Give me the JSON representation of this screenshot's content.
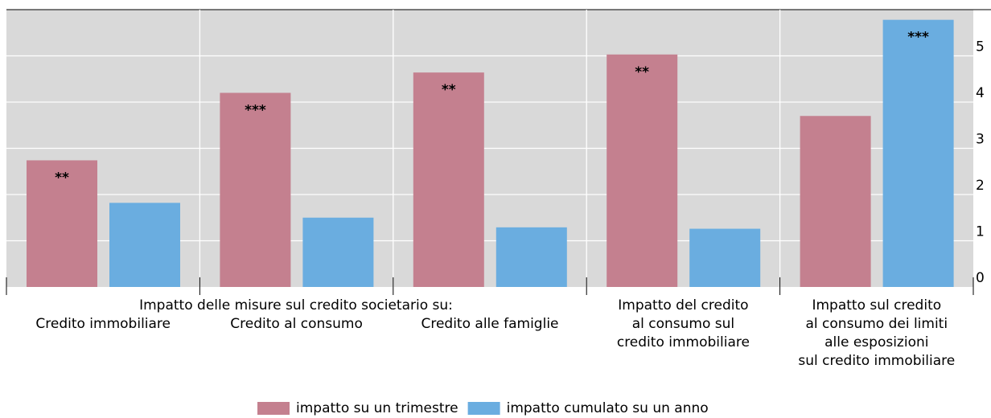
{
  "chart_data": {
    "type": "bar",
    "header": "Impatto delle misure sul credito societario su:",
    "categories": [
      [
        "Credito immobiliare"
      ],
      [
        "Credito al consumo"
      ],
      [
        "Credito alle famiglie"
      ],
      [
        "Impatto del credito",
        "al consumo sul",
        "credito immobiliare"
      ],
      [
        "Impatto sul credito",
        "al consumo dei limiti",
        "alle esposizioni",
        "sul credito immobiliare"
      ]
    ],
    "series": [
      {
        "name": "impatto su un trimestre",
        "color": "#c4808f",
        "values": [
          2.74,
          4.2,
          4.64,
          5.03,
          3.7
        ],
        "significance": [
          "**",
          "***",
          "**",
          "**",
          null
        ]
      },
      {
        "name": "impatto cumulato su un anno",
        "color": "#6aade0",
        "values": [
          1.82,
          1.5,
          1.29,
          1.26,
          5.78
        ],
        "significance": [
          null,
          null,
          null,
          null,
          "***"
        ]
      }
    ],
    "ylim": [
      0,
      6
    ],
    "yticks": [
      0,
      1,
      2,
      3,
      4,
      5
    ],
    "grid": true
  }
}
